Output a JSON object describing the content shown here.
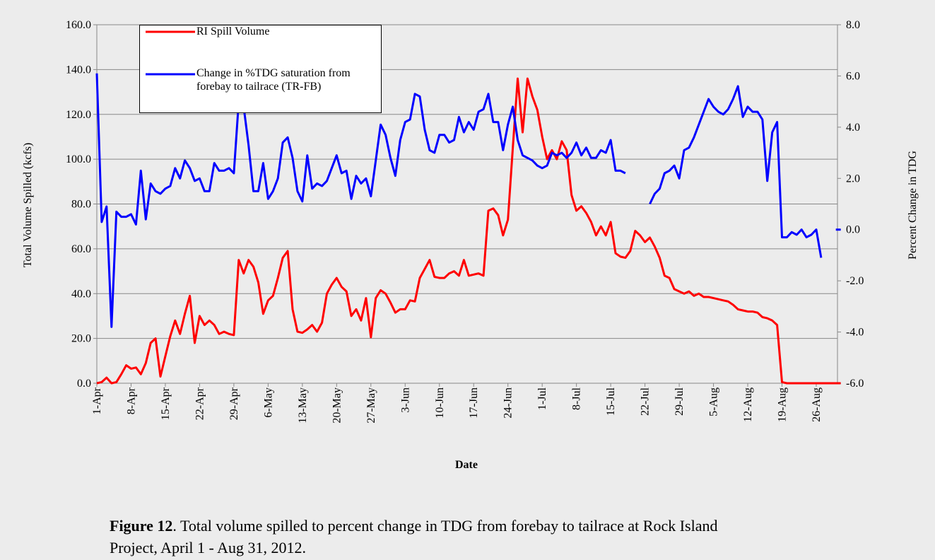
{
  "chart_data": {
    "type": "line",
    "xlabel": "Date",
    "ylabel": "Total Volume Spilled (kcfs)",
    "y2label": "Percent Change in TDG",
    "categories": [
      "1-Apr",
      null,
      null,
      null,
      null,
      null,
      null,
      "8-Apr",
      null,
      null,
      null,
      null,
      null,
      null,
      "15-Apr",
      null,
      null,
      null,
      null,
      null,
      null,
      "22-Apr",
      null,
      null,
      null,
      null,
      null,
      null,
      "29-Apr",
      null,
      null,
      null,
      null,
      null,
      null,
      "6-May",
      null,
      null,
      null,
      null,
      null,
      null,
      "13-May",
      null,
      null,
      null,
      null,
      null,
      null,
      "20-May",
      null,
      null,
      null,
      null,
      null,
      null,
      "27-May",
      null,
      null,
      null,
      null,
      null,
      null,
      "3-Jun",
      null,
      null,
      null,
      null,
      null,
      null,
      "10-Jun",
      null,
      null,
      null,
      null,
      null,
      null,
      "17-Jun",
      null,
      null,
      null,
      null,
      null,
      null,
      "24-Jun",
      null,
      null,
      null,
      null,
      null,
      null,
      "1-Jul",
      null,
      null,
      null,
      null,
      null,
      null,
      "8-Jul",
      null,
      null,
      null,
      null,
      null,
      null,
      "15-Jul",
      null,
      null,
      null,
      null,
      null,
      null,
      "22-Jul",
      null,
      null,
      null,
      null,
      null,
      null,
      "29-Jul",
      null,
      null,
      null,
      null,
      null,
      null,
      "5-Aug",
      null,
      null,
      null,
      null,
      null,
      null,
      "12-Aug",
      null,
      null,
      null,
      null,
      null,
      null,
      "19-Aug",
      null,
      null,
      null,
      null,
      null,
      null,
      "26-Aug",
      null,
      null,
      null,
      null,
      null
    ],
    "series": [
      {
        "name": "RI Spill Volume",
        "color": "#ff0000",
        "values": [
          0,
          0.5,
          2.5,
          0,
          0.5,
          4,
          8,
          6.5,
          7,
          4,
          9,
          18,
          20,
          3,
          12,
          21,
          28,
          22,
          31,
          39,
          18,
          30,
          26,
          28,
          26,
          22,
          23,
          22,
          21.5,
          55,
          49,
          55,
          52,
          45,
          31,
          37,
          39,
          47,
          56,
          59,
          33,
          23,
          22.5,
          24,
          26,
          23,
          27,
          40,
          44,
          47,
          43,
          41,
          30,
          33,
          28,
          38,
          20.5,
          38,
          41.5,
          40,
          36,
          31.5,
          33,
          33,
          37,
          36.5,
          47,
          51,
          55,
          47.5,
          47,
          47,
          49,
          50,
          48,
          55,
          48,
          48.5,
          49,
          48,
          77,
          78,
          75,
          66,
          73,
          105,
          136,
          112,
          136,
          128,
          122,
          110,
          100,
          104,
          100,
          108,
          104,
          84,
          77,
          79,
          76,
          72,
          66,
          70,
          66,
          72,
          58,
          56.5,
          56,
          59,
          68,
          66,
          63,
          65,
          61,
          56,
          48,
          47,
          42,
          41,
          40,
          41,
          39,
          40,
          38.5,
          38.5,
          38,
          37.5,
          37,
          36.5,
          35,
          33,
          32.5,
          32,
          32,
          31.5,
          29.5,
          29,
          28,
          26,
          0.5,
          0,
          0,
          0,
          0,
          0,
          0,
          0,
          0,
          0,
          0,
          0,
          0
        ]
      },
      {
        "name": "Change in %TDG saturation from forebay to tailrace (TR-FB)",
        "color": "#0000ff",
        "axis": "y2",
        "values": [
          6.1,
          0.3,
          0.9,
          -3.8,
          0.7,
          0.5,
          0.5,
          0.6,
          0.2,
          2.3,
          0.4,
          1.8,
          1.5,
          1.4,
          1.6,
          1.7,
          2.4,
          2.0,
          2.7,
          2.4,
          1.9,
          2.0,
          1.5,
          1.5,
          2.6,
          2.3,
          2.3,
          2.4,
          2.2,
          5.0,
          4.8,
          3.3,
          1.5,
          1.5,
          2.6,
          1.2,
          1.5,
          2.0,
          3.4,
          3.6,
          2.8,
          1.5,
          1.1,
          2.9,
          1.6,
          1.8,
          1.7,
          1.9,
          2.4,
          2.9,
          2.2,
          2.3,
          1.2,
          2.1,
          1.8,
          2.0,
          1.3,
          2.7,
          4.1,
          3.7,
          2.8,
          2.1,
          3.5,
          4.2,
          4.3,
          5.3,
          5.2,
          3.9,
          3.1,
          3.0,
          3.7,
          3.7,
          3.4,
          3.5,
          4.4,
          3.8,
          4.2,
          3.9,
          4.6,
          4.7,
          5.3,
          4.2,
          4.2,
          3.1,
          4.1,
          4.8,
          3.5,
          2.9,
          2.8,
          2.7,
          2.5,
          2.4,
          2.5,
          3.0,
          2.9,
          3.0,
          2.8,
          3.0,
          3.4,
          2.9,
          3.2,
          2.8,
          2.8,
          3.1,
          3.0,
          3.5,
          2.3,
          2.3,
          2.2,
          null,
          null,
          null,
          null,
          1.0,
          1.4,
          1.6,
          2.2,
          2.3,
          2.5,
          2.0,
          3.1,
          3.2,
          3.6,
          4.1,
          4.6,
          5.1,
          4.8,
          4.6,
          4.5,
          4.7,
          5.1,
          5.6,
          4.4,
          4.8,
          4.6,
          4.6,
          4.3,
          1.9,
          3.8,
          4.2,
          -0.3,
          -0.3,
          -0.1,
          -0.2,
          0.0,
          -0.3,
          -0.2,
          0.0,
          -1.1,
          null,
          null,
          0.0,
          0.0
        ]
      }
    ],
    "ylim": [
      0,
      160
    ],
    "yticks": [
      {
        "value": 0,
        "label": "0.0"
      },
      {
        "value": 20,
        "label": "20.0"
      },
      {
        "value": 40,
        "label": "40.0"
      },
      {
        "value": 60,
        "label": "60.0"
      },
      {
        "value": 80,
        "label": "80.0"
      },
      {
        "value": 100,
        "label": "100.0"
      },
      {
        "value": 120,
        "label": "120.0"
      },
      {
        "value": 140,
        "label": "140.0"
      },
      {
        "value": 160,
        "label": "160.0"
      }
    ],
    "y2lim": [
      -6,
      8
    ],
    "y2ticks": [
      {
        "value": -6,
        "label": "-6.0"
      },
      {
        "value": -4,
        "label": "-4.0"
      },
      {
        "value": -2,
        "label": "-2.0"
      },
      {
        "value": 0,
        "label": "0.0"
      },
      {
        "value": 2,
        "label": "2.0"
      },
      {
        "value": 4,
        "label": "4.0"
      },
      {
        "value": 6,
        "label": "6.0"
      },
      {
        "value": 8,
        "label": "8.0"
      }
    ],
    "grid": true,
    "legend": "upper left"
  },
  "caption": {
    "label": "Figure 12",
    "text": ".  Total volume spilled to percent change in TDG from forebay to tailrace at Rock Island Project, April 1 - Aug 31, 2012."
  }
}
